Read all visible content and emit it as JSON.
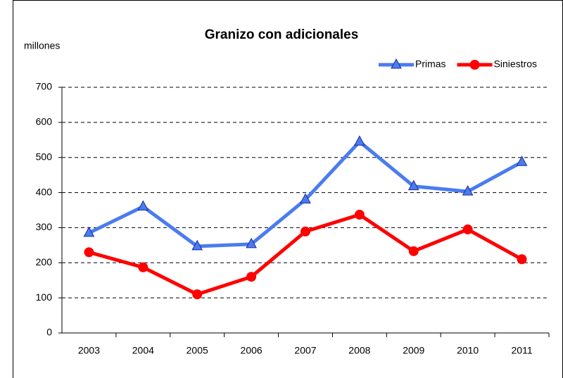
{
  "chart_data": {
    "type": "line",
    "title": "Granizo con adicionales",
    "y_label": "millones",
    "categories": [
      "2003",
      "2004",
      "2005",
      "2006",
      "2007",
      "2008",
      "2009",
      "2010",
      "2011"
    ],
    "series": [
      {
        "name": "Primas",
        "color": "#4a7cf0",
        "marker": "triangle",
        "values": [
          285,
          360,
          247,
          253,
          380,
          545,
          418,
          403,
          487
        ]
      },
      {
        "name": "Siniestros",
        "color": "#ff0000",
        "marker": "circle",
        "values": [
          230,
          187,
          110,
          160,
          289,
          337,
          233,
          295,
          210
        ]
      }
    ],
    "ylim": [
      0,
      700
    ],
    "yticks": [
      0,
      100,
      200,
      300,
      400,
      500,
      600,
      700
    ],
    "grid": true,
    "legend": "top-right"
  }
}
